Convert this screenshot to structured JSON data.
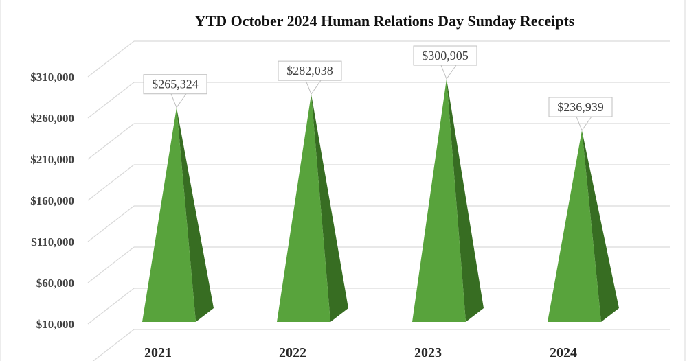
{
  "chart_data": {
    "type": "bar",
    "bar_shape": "3d-pyramid",
    "title": "YTD October 2024 Human Relations Day Sunday Receipts",
    "categories": [
      "2021",
      "2022",
      "2023",
      "2024"
    ],
    "values": [
      265324,
      282038,
      300905,
      236939
    ],
    "data_labels": [
      "$265,324",
      "$282,038",
      "$300,905",
      "$236,939"
    ],
    "y_ticks": [
      10000,
      60000,
      110000,
      160000,
      210000,
      260000,
      310000
    ],
    "y_tick_labels": [
      "$10,000",
      "$60,000",
      "$110,000",
      "$160,000",
      "$210,000",
      "$260,000",
      "$310,000"
    ],
    "ylim": [
      10000,
      310000
    ],
    "grid": true,
    "legend": "none",
    "colors": {
      "front": "#58a33c",
      "side": "#376d22",
      "grid": "#d9d9d9"
    }
  }
}
